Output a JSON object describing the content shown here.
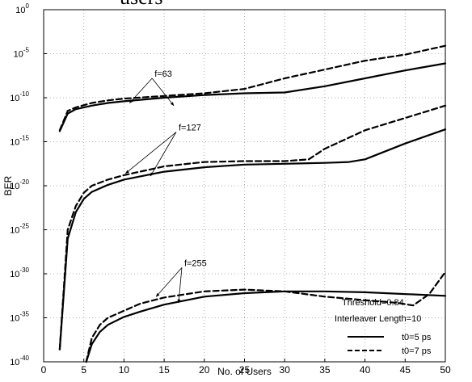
{
  "chart_data": {
    "type": "line",
    "title_fragment": "users",
    "xlabel": "No. of Users",
    "ylabel": "BER",
    "xlim": [
      0,
      50
    ],
    "ylim_log10": [
      -40,
      0
    ],
    "yscale": "log",
    "grid": true,
    "x_ticks": [
      "0",
      "5",
      "10",
      "15",
      "20",
      "25",
      "30",
      "35",
      "40",
      "45",
      "50"
    ],
    "y_ticks": [
      {
        "base": "10",
        "exp": "0"
      },
      {
        "base": "10",
        "exp": "-5"
      },
      {
        "base": "10",
        "exp": "-10"
      },
      {
        "base": "10",
        "exp": "-15"
      },
      {
        "base": "10",
        "exp": "-20"
      },
      {
        "base": "10",
        "exp": "-25"
      },
      {
        "base": "10",
        "exp": "-30"
      },
      {
        "base": "10",
        "exp": "-35"
      },
      {
        "base": "10",
        "exp": "-40"
      }
    ],
    "legend_position": "bottom-right",
    "legend": [
      {
        "label": "t0=5 ps",
        "style": "solid"
      },
      {
        "label": "t0=7 ps",
        "style": "dashed"
      }
    ],
    "annotations": {
      "threshold": "Threshold=0.84",
      "interleaver": "Interleaver Length=10",
      "groups": [
        {
          "label": "f=63",
          "x": 13.5,
          "y_log10": -7.8,
          "solid_arrow_to": [
            16.2,
            -10.9
          ],
          "dashed_arrow_to": [
            10.7,
            -10.6
          ]
        },
        {
          "label": "f=127",
          "x": 16.5,
          "y_log10": -13.9,
          "solid_arrow_to": [
            13.3,
            -18.9
          ],
          "dashed_arrow_to": [
            10.2,
            -18.6
          ]
        },
        {
          "label": "f=255",
          "x": 17.2,
          "y_log10": -29.3,
          "solid_arrow_to": [
            16.8,
            -33.3
          ],
          "dashed_arrow_to": [
            14.0,
            -32.6
          ]
        }
      ]
    },
    "series": [
      {
        "group": "f=63",
        "style": "solid",
        "x": [
          2,
          3,
          4,
          6,
          8,
          10,
          15,
          20,
          25,
          30,
          35,
          40,
          45,
          50
        ],
        "y_log10": [
          -13.8,
          -11.8,
          -11.3,
          -10.9,
          -10.6,
          -10.4,
          -10.0,
          -9.7,
          -9.5,
          -9.4,
          -8.7,
          -7.8,
          -6.9,
          -6.1
        ]
      },
      {
        "group": "f=63",
        "style": "dashed",
        "x": [
          2,
          3,
          4,
          6,
          8,
          10,
          15,
          20,
          25,
          30,
          35,
          40,
          45,
          50
        ],
        "y_log10": [
          -13.7,
          -11.5,
          -11.1,
          -10.6,
          -10.3,
          -10.1,
          -9.8,
          -9.5,
          -9.0,
          -7.8,
          -6.8,
          -5.8,
          -5.1,
          -4.1
        ]
      },
      {
        "group": "f=127",
        "style": "solid",
        "x": [
          2,
          3,
          4,
          5,
          6,
          8,
          10,
          15,
          20,
          25,
          30,
          35,
          38,
          40,
          45,
          50
        ],
        "y_log10": [
          -38.6,
          -26.0,
          -23.0,
          -21.5,
          -20.7,
          -19.9,
          -19.3,
          -18.4,
          -17.9,
          -17.6,
          -17.5,
          -17.4,
          -17.3,
          -17.0,
          -15.2,
          -13.6
        ]
      },
      {
        "group": "f=127",
        "style": "dashed",
        "x": [
          2,
          3,
          4,
          5,
          6,
          8,
          10,
          15,
          20,
          25,
          30,
          33,
          35,
          40,
          45,
          50
        ],
        "y_log10": [
          -38.6,
          -25.0,
          -22.3,
          -20.8,
          -20.0,
          -19.3,
          -18.8,
          -17.8,
          -17.3,
          -17.2,
          -17.2,
          -17.0,
          -15.8,
          -13.7,
          -12.3,
          -10.9
        ]
      },
      {
        "group": "f=255",
        "style": "solid",
        "x": [
          5.3,
          6,
          7,
          8,
          10,
          12,
          15,
          20,
          25,
          30,
          35,
          40,
          45,
          50
        ],
        "y_log10": [
          -40.0,
          -38.0,
          -36.6,
          -35.8,
          -34.9,
          -34.3,
          -33.5,
          -32.6,
          -32.2,
          -32.0,
          -32.0,
          -32.1,
          -32.3,
          -32.5
        ]
      },
      {
        "group": "f=255",
        "style": "dashed",
        "x": [
          5.3,
          6,
          7,
          8,
          10,
          12,
          15,
          20,
          25,
          30,
          35,
          40,
          44,
          46,
          48,
          50
        ],
        "y_log10": [
          -40.0,
          -37.3,
          -35.8,
          -35.0,
          -34.2,
          -33.4,
          -32.7,
          -32.0,
          -31.8,
          -32.0,
          -32.6,
          -33.0,
          -33.3,
          -33.6,
          -32.3,
          -29.8
        ]
      }
    ]
  }
}
